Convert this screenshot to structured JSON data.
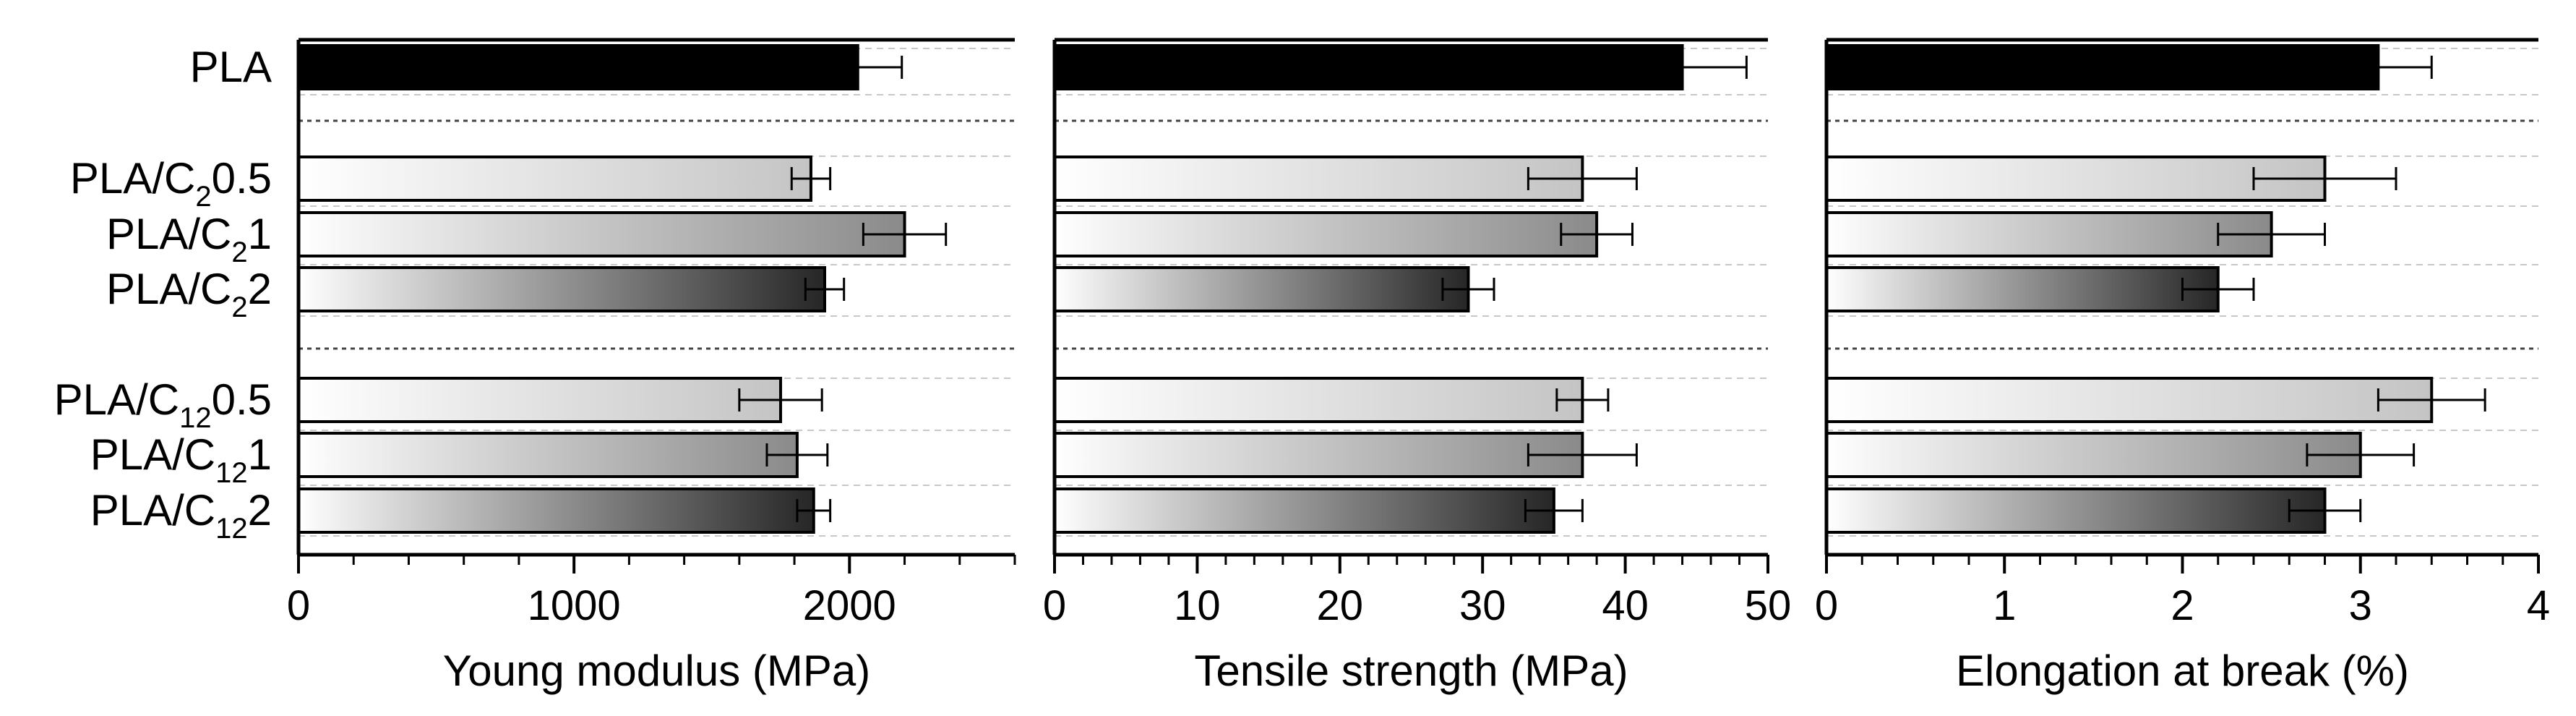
{
  "chart_data": {
    "type": "bar",
    "orientation": "horizontal",
    "groups": [
      {
        "name": "neat",
        "label": "PLA",
        "samples": [
          "PLA"
        ]
      },
      {
        "name": "C2",
        "label": "PLA/C2",
        "samples": [
          "PLA/C2 0.5",
          "PLA/C2 1",
          "PLA/C2 2"
        ]
      },
      {
        "name": "C12",
        "label": "PLA/C12",
        "samples": [
          "PLA/C12 0.5",
          "PLA/C12 1",
          "PLA/C12 2"
        ]
      }
    ],
    "categories": [
      {
        "id": "pla",
        "text": "PLA",
        "base": "PLA",
        "sub": "",
        "tail": "",
        "shade": "black"
      },
      {
        "id": "c2-05",
        "text": "PLA/C20.5",
        "base": "PLA/C",
        "sub": "2",
        "tail": "0.5",
        "shade": "light"
      },
      {
        "id": "c2-1",
        "text": "PLA/C21",
        "base": "PLA/C",
        "sub": "2",
        "tail": "1",
        "shade": "medium"
      },
      {
        "id": "c2-2",
        "text": "PLA/C22",
        "base": "PLA/C",
        "sub": "2",
        "tail": "2",
        "shade": "dark"
      },
      {
        "id": "c12-05",
        "text": "PLA/C120.5",
        "base": "PLA/C",
        "sub": "12",
        "tail": "0.5",
        "shade": "light"
      },
      {
        "id": "c12-1",
        "text": "PLA/C121",
        "base": "PLA/C",
        "sub": "12",
        "tail": "1",
        "shade": "medium"
      },
      {
        "id": "c12-2",
        "text": "PLA/C122",
        "base": "PLA/C",
        "sub": "12",
        "tail": "2",
        "shade": "dark"
      }
    ],
    "panels": [
      {
        "id": "young-modulus",
        "xlabel": "Young modulus (MPa)",
        "xlim": [
          0,
          2600
        ],
        "ticks": [
          0,
          1000,
          2000
        ],
        "tick_labels": [
          "0",
          "1000",
          "2000"
        ],
        "minor_step": 200,
        "values": [
          2030,
          1860,
          2200,
          1910,
          1750,
          1810,
          1870
        ],
        "errors": [
          160,
          70,
          150,
          70,
          150,
          110,
          60
        ]
      },
      {
        "id": "tensile-strength",
        "xlabel": "Tensile strength (MPa)",
        "xlim": [
          0,
          50
        ],
        "ticks": [
          0,
          10,
          20,
          30,
          40,
          50
        ],
        "tick_labels": [
          "0",
          "10",
          "20",
          "30",
          "40",
          "50"
        ],
        "minor_step": 2,
        "values": [
          44.0,
          37.0,
          38.0,
          29.0,
          37.0,
          37.0,
          35.0
        ],
        "errors": [
          4.5,
          3.8,
          2.5,
          1.8,
          1.8,
          3.8,
          2.0
        ]
      },
      {
        "id": "elongation-at-break",
        "xlabel": "Elongation at break (%)",
        "xlim": [
          0,
          4
        ],
        "ticks": [
          0,
          1,
          2,
          3,
          4
        ],
        "tick_labels": [
          "0",
          "1",
          "2",
          "3",
          "4"
        ],
        "minor_step": 0.2,
        "values": [
          3.1,
          2.8,
          2.5,
          2.2,
          3.4,
          3.0,
          2.8
        ],
        "errors": [
          0.3,
          0.4,
          0.3,
          0.2,
          0.3,
          0.3,
          0.2
        ]
      }
    ],
    "colors": {
      "black_bar": "#000000",
      "gradient_start": "#ffffff",
      "light_end": "#c4c4c4",
      "medium_end": "#8a8a8a",
      "dark_end": "#262626",
      "grid": "#c8c8c8",
      "separator": "#444444"
    },
    "grid": "dashed horizontal",
    "legend": "none"
  }
}
